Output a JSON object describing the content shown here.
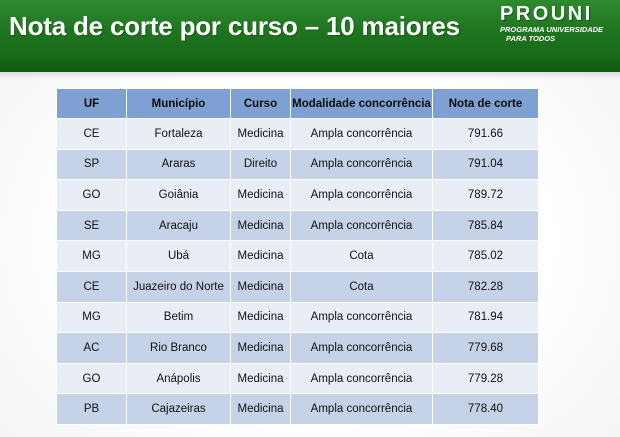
{
  "header": {
    "title": "Nota de corte por curso – 10 maiores",
    "logo": {
      "word": "PROUNI",
      "line1": "PROGRAMA UNIVERSIDADE",
      "line2": "PARA TODOS"
    }
  },
  "table": {
    "headers": [
      "UF",
      "Município",
      "Curso",
      "Modalidade concorrência",
      "Nota de corte"
    ],
    "rows": [
      [
        "CE",
        "Fortaleza",
        "Medicina",
        "Ampla concorrência",
        "791.66"
      ],
      [
        "SP",
        "Araras",
        "Direito",
        "Ampla concorrência",
        "791.04"
      ],
      [
        "GO",
        "Goiânia",
        "Medicina",
        "Ampla concorrência",
        "789.72"
      ],
      [
        "SE",
        "Aracaju",
        "Medicina",
        "Ampla concorrência",
        "785.84"
      ],
      [
        "MG",
        "Ubá",
        "Medicina",
        "Cota",
        "785.02"
      ],
      [
        "CE",
        "Juazeiro do Norte",
        "Medicina",
        "Cota",
        "782.28"
      ],
      [
        "MG",
        "Betim",
        "Medicina",
        "Ampla concorrência",
        "781.94"
      ],
      [
        "AC",
        "Rio Branco",
        "Medicina",
        "Ampla concorrência",
        "779.68"
      ],
      [
        "GO",
        "Anápolis",
        "Medicina",
        "Ampla concorrência",
        "779.28"
      ],
      [
        "PB",
        "Cajazeiras",
        "Medicina",
        "Ampla concorrência",
        "778.40"
      ]
    ]
  },
  "colors": {
    "header_green": "#1f761f",
    "header_dark_green": "#0f5a12",
    "table_header": "#7fa0d2",
    "row_light": "#e9edf5",
    "row_dark": "#c5d2e8"
  }
}
